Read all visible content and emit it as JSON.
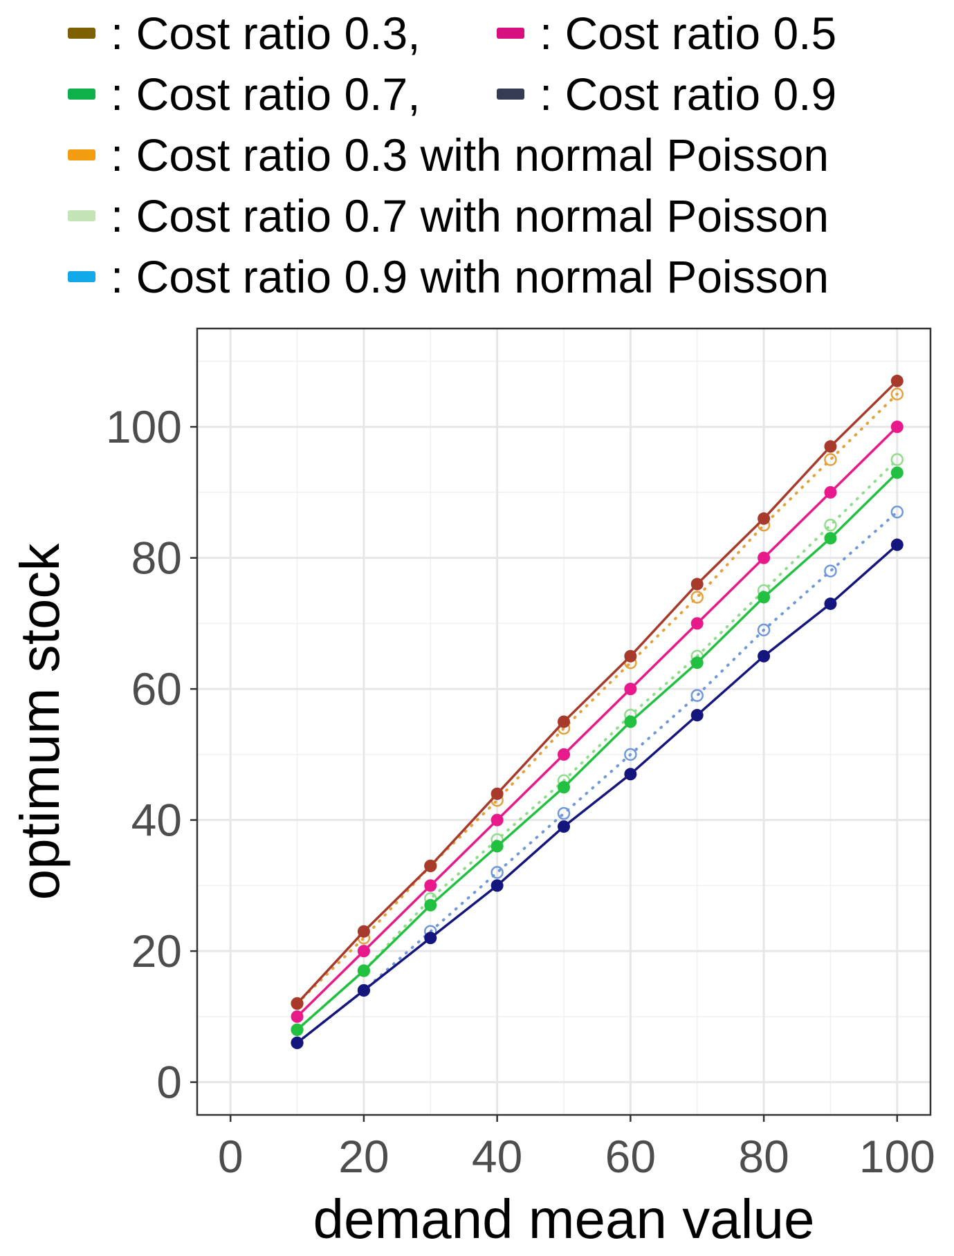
{
  "legend": {
    "items": [
      {
        "label": ": Cost ratio 0.3,",
        "color": "#7f6000"
      },
      {
        "label": ": Cost ratio 0.5",
        "color": "#d6107f"
      },
      {
        "label": ": Cost ratio 0.7,",
        "color": "#0fb24a"
      },
      {
        "label": ": Cost ratio 0.9",
        "color": "#353c51"
      },
      {
        "label": ": Cost ratio 0.3 with normal Poisson",
        "color": "#f39c12"
      },
      {
        "label": ": Cost ratio 0.7 with normal Poisson",
        "color": "#c3e4b4"
      },
      {
        "label": ": Cost ratio 0.9 with normal Poisson",
        "color": "#11a9e8"
      }
    ]
  },
  "chart_data": {
    "type": "line",
    "title": "",
    "xlabel": "demand mean value",
    "ylabel": "optimum stock",
    "xlim": [
      -5,
      105
    ],
    "ylim": [
      -5,
      115
    ],
    "xticks": [
      0,
      20,
      40,
      60,
      80,
      100
    ],
    "yticks": [
      0,
      20,
      40,
      60,
      80,
      100
    ],
    "grid": true,
    "x": [
      10,
      20,
      30,
      40,
      50,
      60,
      70,
      80,
      90,
      100
    ],
    "series": [
      {
        "name": "Cost ratio 0.3 with normal Poisson",
        "color": "#e5a03a",
        "style": "dotted",
        "marker": "open",
        "values": [
          12,
          22,
          33,
          43,
          54,
          64,
          74,
          85,
          95,
          105
        ]
      },
      {
        "name": "Cost ratio 0.7 with normal Poisson",
        "color": "#8fdc8a",
        "style": "dotted",
        "marker": "open",
        "values": [
          8,
          17,
          28,
          37,
          46,
          56,
          65,
          75,
          85,
          95
        ]
      },
      {
        "name": "Cost ratio 0.9 with normal Poisson",
        "color": "#6f97dc",
        "style": "dotted",
        "marker": "open",
        "values": [
          6,
          14,
          23,
          32,
          41,
          50,
          59,
          69,
          78,
          87
        ]
      },
      {
        "name": "Cost ratio 0.3",
        "color": "#a83a2c",
        "style": "solid",
        "marker": "filled",
        "values": [
          12,
          23,
          33,
          44,
          55,
          65,
          76,
          86,
          97,
          107
        ]
      },
      {
        "name": "Cost ratio 0.5",
        "color": "#e8198a",
        "style": "solid",
        "marker": "filled",
        "values": [
          10,
          20,
          30,
          40,
          50,
          60,
          70,
          80,
          90,
          100
        ]
      },
      {
        "name": "Cost ratio 0.7",
        "color": "#22c040",
        "style": "solid",
        "marker": "filled",
        "values": [
          8,
          17,
          27,
          36,
          45,
          55,
          64,
          74,
          83,
          93
        ]
      },
      {
        "name": "Cost ratio 0.9",
        "color": "#14167e",
        "style": "solid",
        "marker": "filled",
        "values": [
          6,
          14,
          22,
          30,
          39,
          47,
          56,
          65,
          73,
          82
        ]
      }
    ]
  }
}
